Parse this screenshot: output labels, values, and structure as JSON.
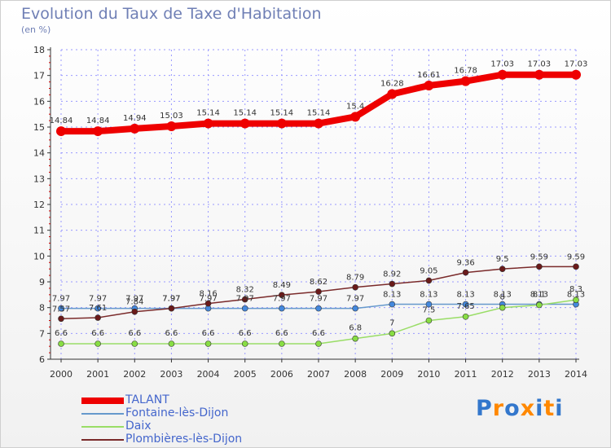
{
  "title": "Evolution du Taux de Taxe d'Habitation",
  "subtitle": "(en %)",
  "logo_text": "Proxiti",
  "colors": {
    "talant": "#ee0000",
    "fontaine": "#6699cc",
    "daix": "#99dd66",
    "plombieres": "#7a2a2a",
    "grid": "#9999ff",
    "axis": "#333333",
    "logo": [
      "#3377cc",
      "#ff8800",
      "#3377cc",
      "#ff8800",
      "#3377cc",
      "#ff8800",
      "#3377cc"
    ]
  },
  "chart_data": {
    "type": "line",
    "title": "Evolution du Taux de Taxe d'Habitation",
    "ylabel": "(en %)",
    "xlabel": "",
    "x": [
      "2000",
      "2001",
      "2002",
      "2003",
      "2004",
      "2005",
      "2006",
      "2007",
      "2008",
      "2009",
      "2010",
      "2011",
      "2012",
      "2013",
      "2014"
    ],
    "ylim": [
      6,
      18
    ],
    "yticks": [
      "6",
      "7",
      "8",
      "9",
      "10",
      "11",
      "12",
      "13",
      "14",
      "15",
      "16",
      "17",
      "18"
    ],
    "grid": "dashed vertical and horizontal",
    "legend": "bottom-left",
    "series": [
      {
        "name": "TALANT",
        "values": [
          14.84,
          14.84,
          14.94,
          15.03,
          15.14,
          15.14,
          15.14,
          15.14,
          15.4,
          16.28,
          16.61,
          16.78,
          17.03,
          17.03,
          17.03
        ],
        "labels": [
          "14.84",
          "14.84",
          "14.94",
          "15.03",
          "15.14",
          "15.14",
          "15.14",
          "15.14",
          "15.4",
          "16.28",
          "16.61",
          "16.78",
          "17.03",
          "17.03",
          "17.03"
        ]
      },
      {
        "name": "Fontaine-lès-Dijon",
        "values": [
          7.97,
          7.97,
          7.97,
          7.97,
          7.97,
          7.97,
          7.97,
          7.97,
          7.97,
          8.13,
          8.13,
          8.13,
          8.13,
          8.13,
          8.13
        ],
        "labels": [
          "7.97",
          "7.97",
          "7.97",
          "7.97",
          "7.97",
          "7.97",
          "7.97",
          "7.97",
          "7.97",
          "8.13",
          "8.13",
          "8.13",
          "8.13",
          "8.13",
          "8.13"
        ]
      },
      {
        "name": "Daix",
        "values": [
          6.6,
          6.6,
          6.6,
          6.6,
          6.6,
          6.6,
          6.6,
          6.6,
          6.8,
          7.0,
          7.5,
          7.65,
          8.0,
          8.1,
          8.3
        ],
        "labels": [
          "6.6",
          "6.6",
          "6.6",
          "6.6",
          "6.6",
          "6.6",
          "6.6",
          "6.6",
          "6.8",
          "7",
          "7.5",
          "7.65",
          "8",
          "8.1",
          "8.3"
        ]
      },
      {
        "name": "Plombières-lès-Dijon",
        "values": [
          7.57,
          7.61,
          7.84,
          7.97,
          8.16,
          8.32,
          8.49,
          8.62,
          8.79,
          8.92,
          9.05,
          9.36,
          9.5,
          9.59,
          9.59
        ],
        "labels": [
          "7.57",
          "7.61",
          "7.84",
          "7.97",
          "8.16",
          "8.32",
          "8.49",
          "8.62",
          "8.79",
          "8.92",
          "9.05",
          "9.36",
          "9.5",
          "9.59",
          "9.59"
        ]
      }
    ]
  }
}
